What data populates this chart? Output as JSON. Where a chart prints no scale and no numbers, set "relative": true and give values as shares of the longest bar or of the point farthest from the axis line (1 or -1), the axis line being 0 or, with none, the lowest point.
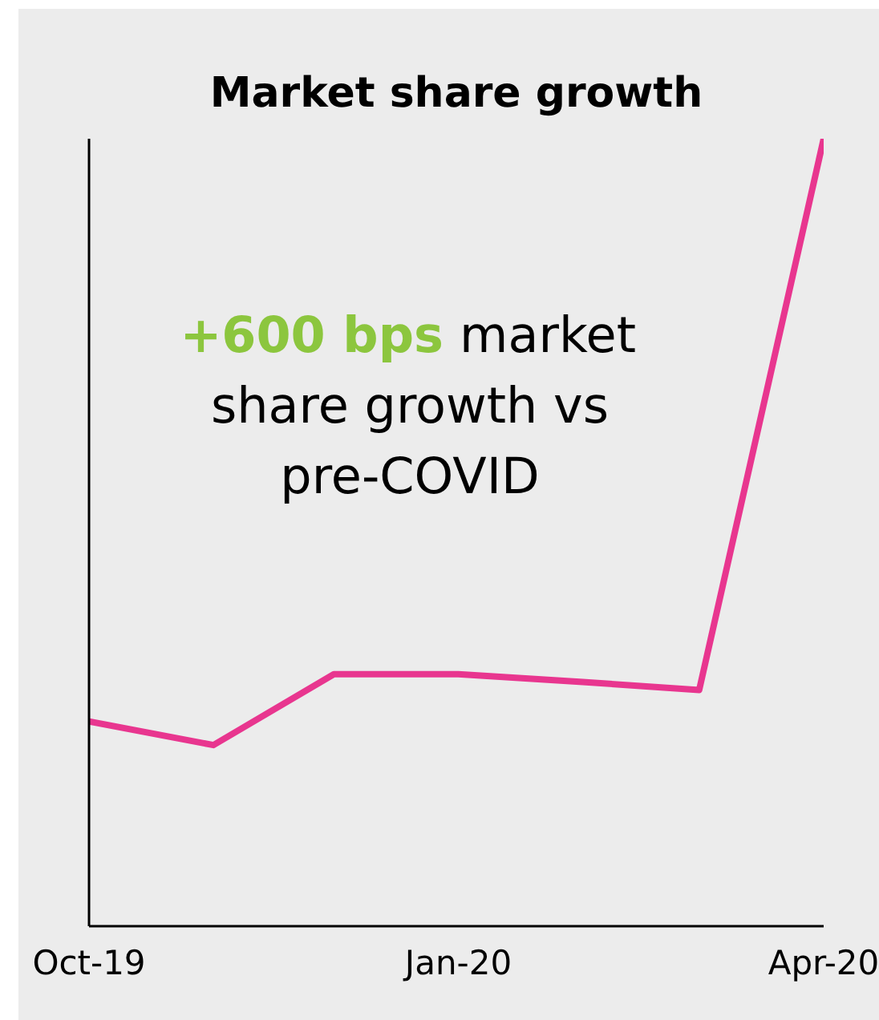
{
  "chart_data": {
    "type": "line",
    "title": "Market share growth",
    "annotations": [
      "+600 bps market share growth vs pre-COVID"
    ],
    "x": [
      "2019-10",
      "2019-11",
      "2019-12",
      "2020-01",
      "2020-02",
      "2020-03",
      "2020-04"
    ],
    "relative": true,
    "series": [
      {
        "color": "#e8368f",
        "values": [
          0.26,
          0.23,
          0.32,
          0.32,
          0.31,
          0.3,
          1
        ]
      }
    ],
    "xlim": [
      "2019-10",
      "2020-04"
    ],
    "xticks": [
      {
        "value": "2019-10",
        "label": "Oct-19"
      },
      {
        "value": "2020-01",
        "label": "Jan-20"
      },
      {
        "value": "2020-04",
        "label": "Apr-20"
      }
    ]
  }
}
